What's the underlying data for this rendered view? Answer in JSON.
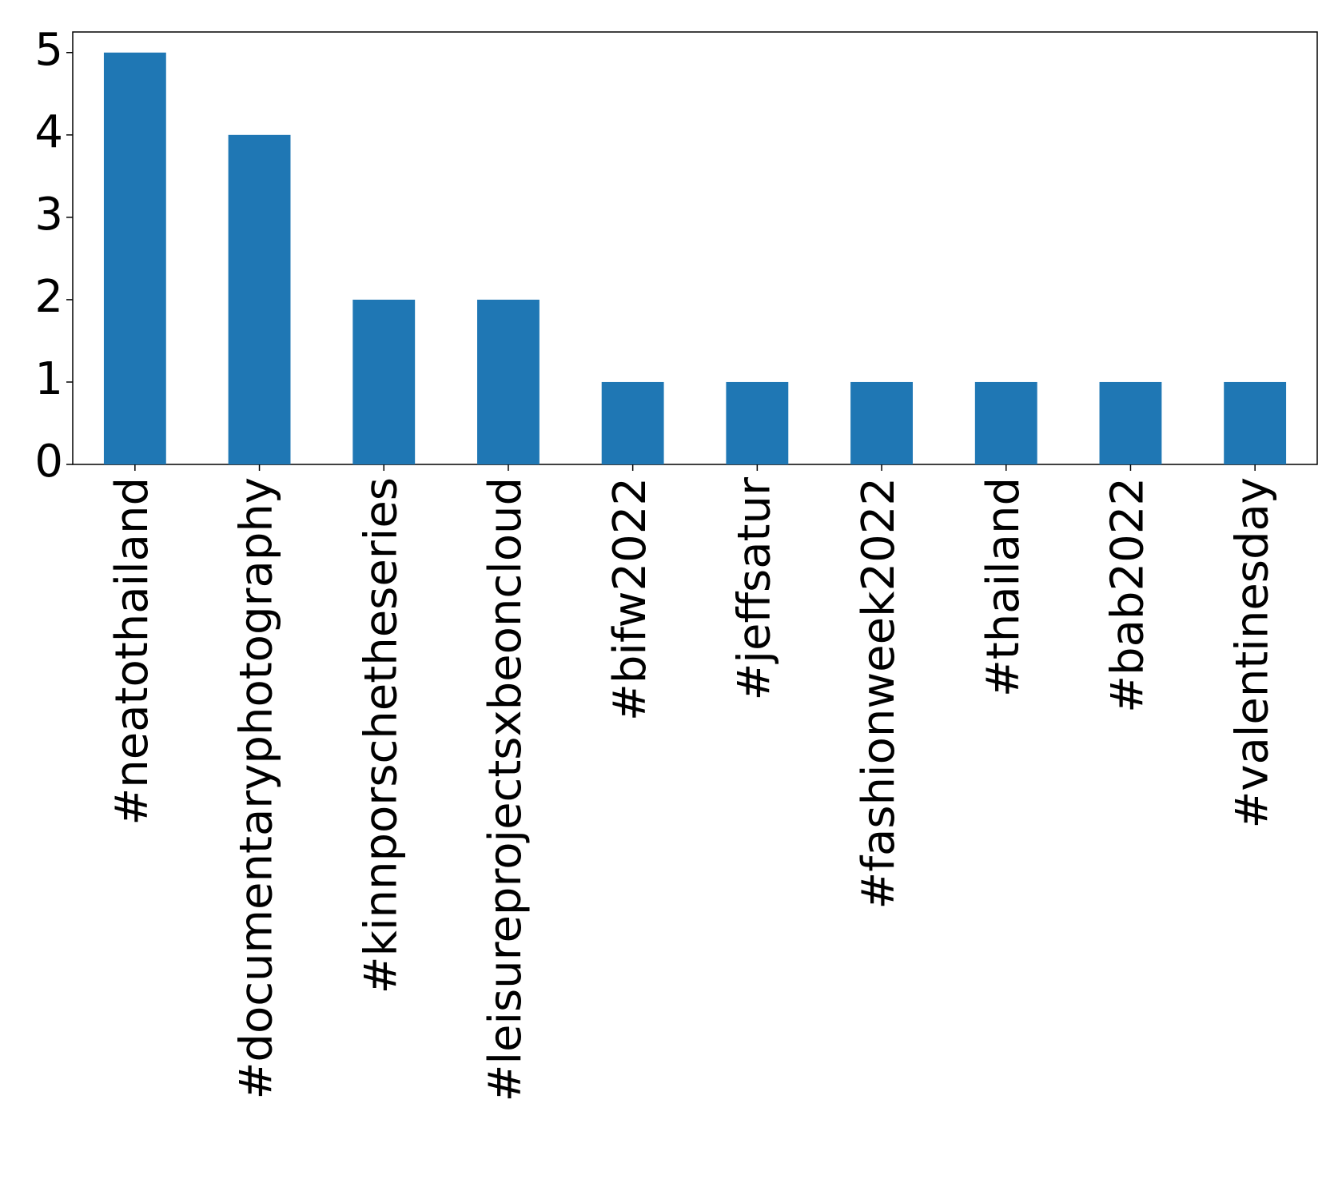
{
  "chart_data": {
    "type": "bar",
    "categories": [
      "#neatothailand",
      "#documentaryphotography",
      "#kinnporschetheseries",
      "#leisureprojectsxbeoncloud",
      "#bifw2022",
      "#jeffsatur",
      "#fashionweek2022",
      "#thailand",
      "#bab2022",
      "#valentinesday"
    ],
    "values": [
      5,
      4,
      2,
      2,
      1,
      1,
      1,
      1,
      1,
      1
    ],
    "color": "#1f77b4",
    "ylim": [
      0,
      5.25
    ],
    "yticks": [
      0,
      1,
      2,
      3,
      4,
      5
    ],
    "grid": false
  }
}
